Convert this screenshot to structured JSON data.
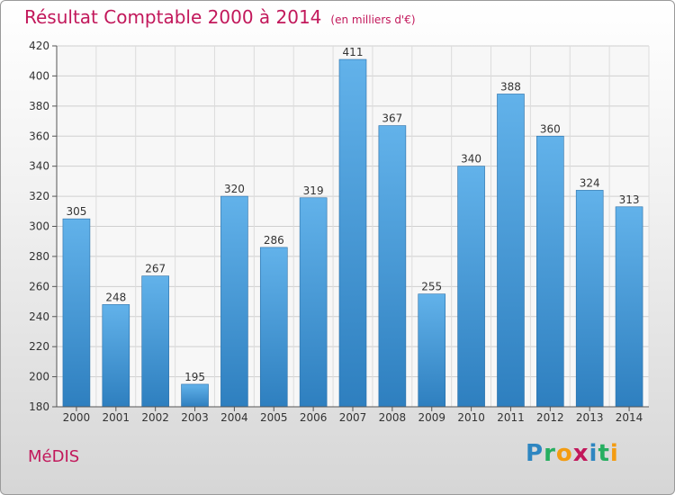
{
  "header": {
    "title": "Résultat Comptable 2000 à 2014",
    "subtitle": "(en milliers d'€)"
  },
  "footer": {
    "town": "MéDIS",
    "logo_letters": [
      {
        "ch": "P",
        "color": "#2e86c1"
      },
      {
        "ch": "r",
        "color": "#27ae60"
      },
      {
        "ch": "o",
        "color": "#f39c12"
      },
      {
        "ch": "x",
        "color": "#c2185b"
      },
      {
        "ch": "i",
        "color": "#2e86c1"
      },
      {
        "ch": "t",
        "color": "#27ae60"
      },
      {
        "ch": "i",
        "color": "#f39c12"
      }
    ]
  },
  "chart_data": {
    "type": "bar",
    "categories": [
      "2000",
      "2001",
      "2002",
      "2003",
      "2004",
      "2005",
      "2006",
      "2007",
      "2008",
      "2009",
      "2010",
      "2011",
      "2012",
      "2013",
      "2014"
    ],
    "values": [
      305,
      248,
      267,
      195,
      320,
      286,
      319,
      411,
      367,
      255,
      340,
      388,
      360,
      324,
      313
    ],
    "ylim": [
      180,
      420
    ],
    "yticks": [
      180,
      200,
      220,
      240,
      260,
      280,
      300,
      320,
      340,
      360,
      380,
      400,
      420
    ],
    "grid": true,
    "bar_color_top": "#5dade2",
    "bar_color_bottom": "#2e7fbf"
  }
}
